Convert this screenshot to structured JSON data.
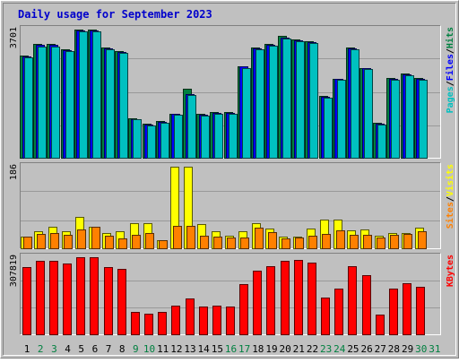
{
  "chart_data": {
    "type": "bar",
    "title": "Daily usage for September 2023",
    "categories": [
      "1",
      "2",
      "3",
      "4",
      "5",
      "6",
      "7",
      "8",
      "9",
      "10",
      "11",
      "12",
      "13",
      "14",
      "15",
      "16",
      "17",
      "18",
      "19",
      "20",
      "21",
      "22",
      "23",
      "24",
      "25",
      "26",
      "27",
      "28",
      "29",
      "30",
      "31"
    ],
    "weekend_days": [
      "2",
      "3",
      "9",
      "10",
      "16",
      "17",
      "23",
      "24",
      "30",
      "31"
    ],
    "colors": {
      "title": "#0000cc",
      "hits": "#008040",
      "files": "#0000ff",
      "pages": "#00c0c0",
      "visits": "#ffff00",
      "sites": "#ff8000",
      "kbytes": "#ff0000",
      "weekday_label": "#000000",
      "weekend_label": "#008040",
      "background": "#c0c0c0"
    },
    "panels": [
      {
        "id": "hits-files-pages",
        "max_label": "3701",
        "ylim": [
          0,
          3701
        ],
        "legend": [
          {
            "name": "Hits",
            "color": "#008040"
          },
          {
            "name": "Files",
            "color": "#0000ff"
          },
          {
            "name": "Pages",
            "color": "#00c0c0"
          }
        ],
        "series": [
          {
            "name": "Hits",
            "values": [
              2960,
              3280,
              3280,
              3130,
              3701,
              3701,
              3180,
              3070,
              1140,
              980,
              1050,
              1280,
              2000,
              1260,
              1320,
              1320,
              2650,
              3180,
              3280,
              3510,
              3420,
              3360,
              1790,
              2290,
              3180,
              2600,
              1000,
              2300,
              2430,
              2300,
              null
            ]
          },
          {
            "name": "Files",
            "values": [
              2930,
              3250,
              3250,
              3110,
              3680,
              3680,
              3160,
              3050,
              1120,
              960,
              1030,
              1260,
              1850,
              1240,
              1300,
              1290,
              2630,
              3160,
              3260,
              3480,
              3400,
              3340,
              1770,
              2270,
              3160,
              2580,
              980,
              2280,
              2410,
              2280,
              null
            ]
          },
          {
            "name": "Pages",
            "values": [
              2900,
              3220,
              3220,
              3080,
              3650,
              3650,
              3130,
              3020,
              1100,
              940,
              1010,
              1230,
              1800,
              1220,
              1280,
              1260,
              2600,
              3130,
              3230,
              3450,
              3370,
              3310,
              1740,
              2240,
              3130,
              2550,
              960,
              2250,
              2380,
              2250,
              null
            ]
          }
        ]
      },
      {
        "id": "visits-sites",
        "max_label": "186",
        "ylim": [
          0,
          186
        ],
        "legend": [
          {
            "name": "Visits",
            "color": "#ffff00"
          },
          {
            "name": "Sites",
            "color": "#ff8000"
          }
        ],
        "series": [
          {
            "name": "Visits",
            "values": [
              26,
              38,
              50,
              38,
              72,
              49,
              34,
              38,
              57,
              58,
              18,
              186,
              186,
              56,
              38,
              29,
              38,
              58,
              44,
              26,
              26,
              44,
              65,
              66,
              40,
              42,
              28,
              34,
              35,
              46,
              null
            ]
          },
          {
            "name": "Sites",
            "values": [
              26,
              32,
              34,
              30,
              43,
              49,
              28,
              23,
              30,
              35,
              18,
              52,
              52,
              29,
              26,
              24,
              24,
              47,
              36,
              23,
              24,
              29,
              33,
              40,
              30,
              30,
              25,
              31,
              33,
              39,
              null
            ]
          }
        ]
      },
      {
        "id": "kbytes",
        "max_label": "307819",
        "ylim": [
          0,
          307819
        ],
        "legend": [
          {
            "name": "KBytes",
            "color": "#ff0000"
          }
        ],
        "series": [
          {
            "name": "KBytes",
            "values": [
              270000,
              295000,
              292000,
              283000,
              307819,
              307819,
              270000,
              260000,
              88000,
              82000,
              90000,
              114000,
              142000,
              112000,
              114000,
              112000,
              201000,
              254000,
              273000,
              292000,
              297000,
              287000,
              147000,
              183000,
              273000,
              236000,
              80000,
              184000,
              203000,
              189000,
              null
            ]
          }
        ]
      }
    ]
  }
}
